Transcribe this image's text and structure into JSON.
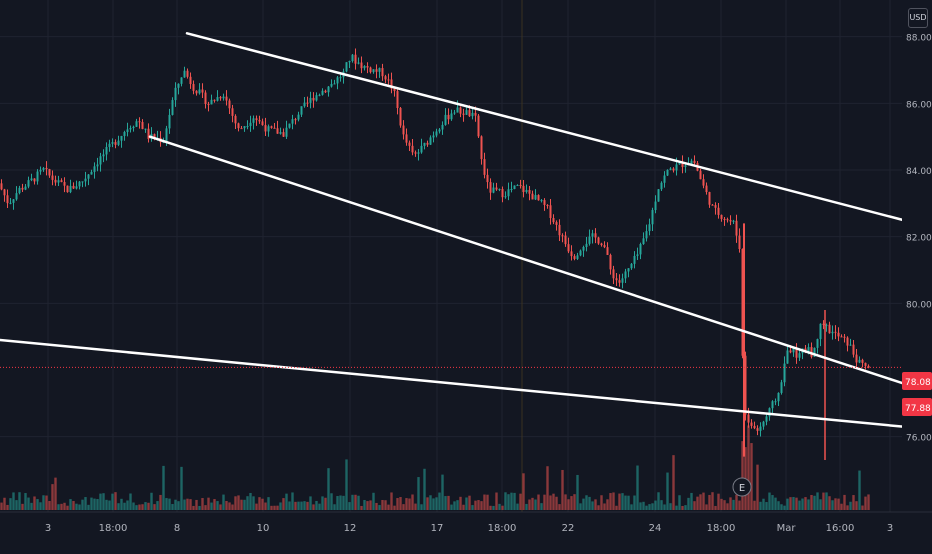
{
  "currency": "USD",
  "chart_data": {
    "type": "candlestick",
    "y_ticks": [
      "88.00",
      "86.00",
      "84.00",
      "82.00",
      "80.00",
      "76.00"
    ],
    "ylim": [
      75.0,
      88.8
    ],
    "x_ticks": [
      "3",
      "18:00",
      "8",
      "10",
      "12",
      "17",
      "18:00",
      "22",
      "24",
      "18:00",
      "Mar",
      "16:00",
      "3"
    ],
    "price_labels": [
      {
        "text": "78.08",
        "value": 78.08,
        "color": "#f23645"
      },
      {
        "text": "77.88",
        "value": 77.88,
        "color": "#f23645"
      }
    ],
    "earnings_marker": "E",
    "colors": {
      "up": "#26a69a",
      "down": "#ef5350",
      "background": "#131722",
      "grid": "#1f2330",
      "trendline": "#ffffff"
    },
    "price_path": [
      [
        0,
        83.6
      ],
      [
        10,
        83.0
      ],
      [
        20,
        83.4
      ],
      [
        30,
        83.6
      ],
      [
        45,
        84.0
      ],
      [
        55,
        83.7
      ],
      [
        70,
        83.4
      ],
      [
        85,
        83.7
      ],
      [
        100,
        84.3
      ],
      [
        115,
        84.8
      ],
      [
        130,
        85.3
      ],
      [
        140,
        85.5
      ],
      [
        150,
        85.0
      ],
      [
        165,
        84.9
      ],
      [
        175,
        86.2
      ],
      [
        185,
        87.0
      ],
      [
        195,
        86.5
      ],
      [
        210,
        86.0
      ],
      [
        225,
        86.3
      ],
      [
        240,
        85.2
      ],
      [
        255,
        85.6
      ],
      [
        270,
        85.2
      ],
      [
        285,
        85.1
      ],
      [
        300,
        85.7
      ],
      [
        315,
        86.2
      ],
      [
        330,
        86.5
      ],
      [
        345,
        86.9
      ],
      [
        352,
        87.4
      ],
      [
        365,
        87.1
      ],
      [
        385,
        86.9
      ],
      [
        395,
        86.4
      ],
      [
        405,
        85.0
      ],
      [
        415,
        84.4
      ],
      [
        425,
        84.7
      ],
      [
        440,
        85.3
      ],
      [
        455,
        85.8
      ],
      [
        470,
        85.7
      ],
      [
        478,
        85.5
      ],
      [
        483,
        84.3
      ],
      [
        490,
        83.4
      ],
      [
        505,
        83.3
      ],
      [
        520,
        83.5
      ],
      [
        535,
        83.2
      ],
      [
        550,
        82.8
      ],
      [
        565,
        81.9
      ],
      [
        575,
        81.4
      ],
      [
        585,
        81.8
      ],
      [
        595,
        82.0
      ],
      [
        605,
        81.8
      ],
      [
        612,
        81.0
      ],
      [
        620,
        80.6
      ],
      [
        630,
        81.0
      ],
      [
        640,
        81.5
      ],
      [
        650,
        82.3
      ],
      [
        660,
        83.5
      ],
      [
        670,
        84.0
      ],
      [
        685,
        84.2
      ],
      [
        695,
        84.3
      ],
      [
        705,
        83.5
      ],
      [
        715,
        82.8
      ],
      [
        725,
        82.6
      ],
      [
        735,
        82.4
      ],
      [
        742,
        81.6
      ],
      [
        745,
        76.8
      ],
      [
        752,
        76.3
      ],
      [
        760,
        76.2
      ],
      [
        770,
        76.7
      ],
      [
        780,
        77.3
      ],
      [
        790,
        78.7
      ],
      [
        800,
        78.4
      ],
      [
        810,
        78.7
      ],
      [
        815,
        78.4
      ],
      [
        822,
        79.5
      ],
      [
        830,
        79.2
      ],
      [
        840,
        79.0
      ],
      [
        850,
        78.8
      ],
      [
        860,
        78.2
      ],
      [
        868,
        78.08
      ]
    ],
    "trendlines": [
      {
        "name": "upper",
        "from": [
          187,
          88.1
        ],
        "to": [
          903,
          82.5
        ]
      },
      {
        "name": "middle",
        "from": [
          150,
          85.0
        ],
        "to": [
          903,
          77.6
        ]
      },
      {
        "name": "lower",
        "from": [
          0,
          78.9
        ],
        "to": [
          903,
          76.3
        ]
      }
    ]
  }
}
